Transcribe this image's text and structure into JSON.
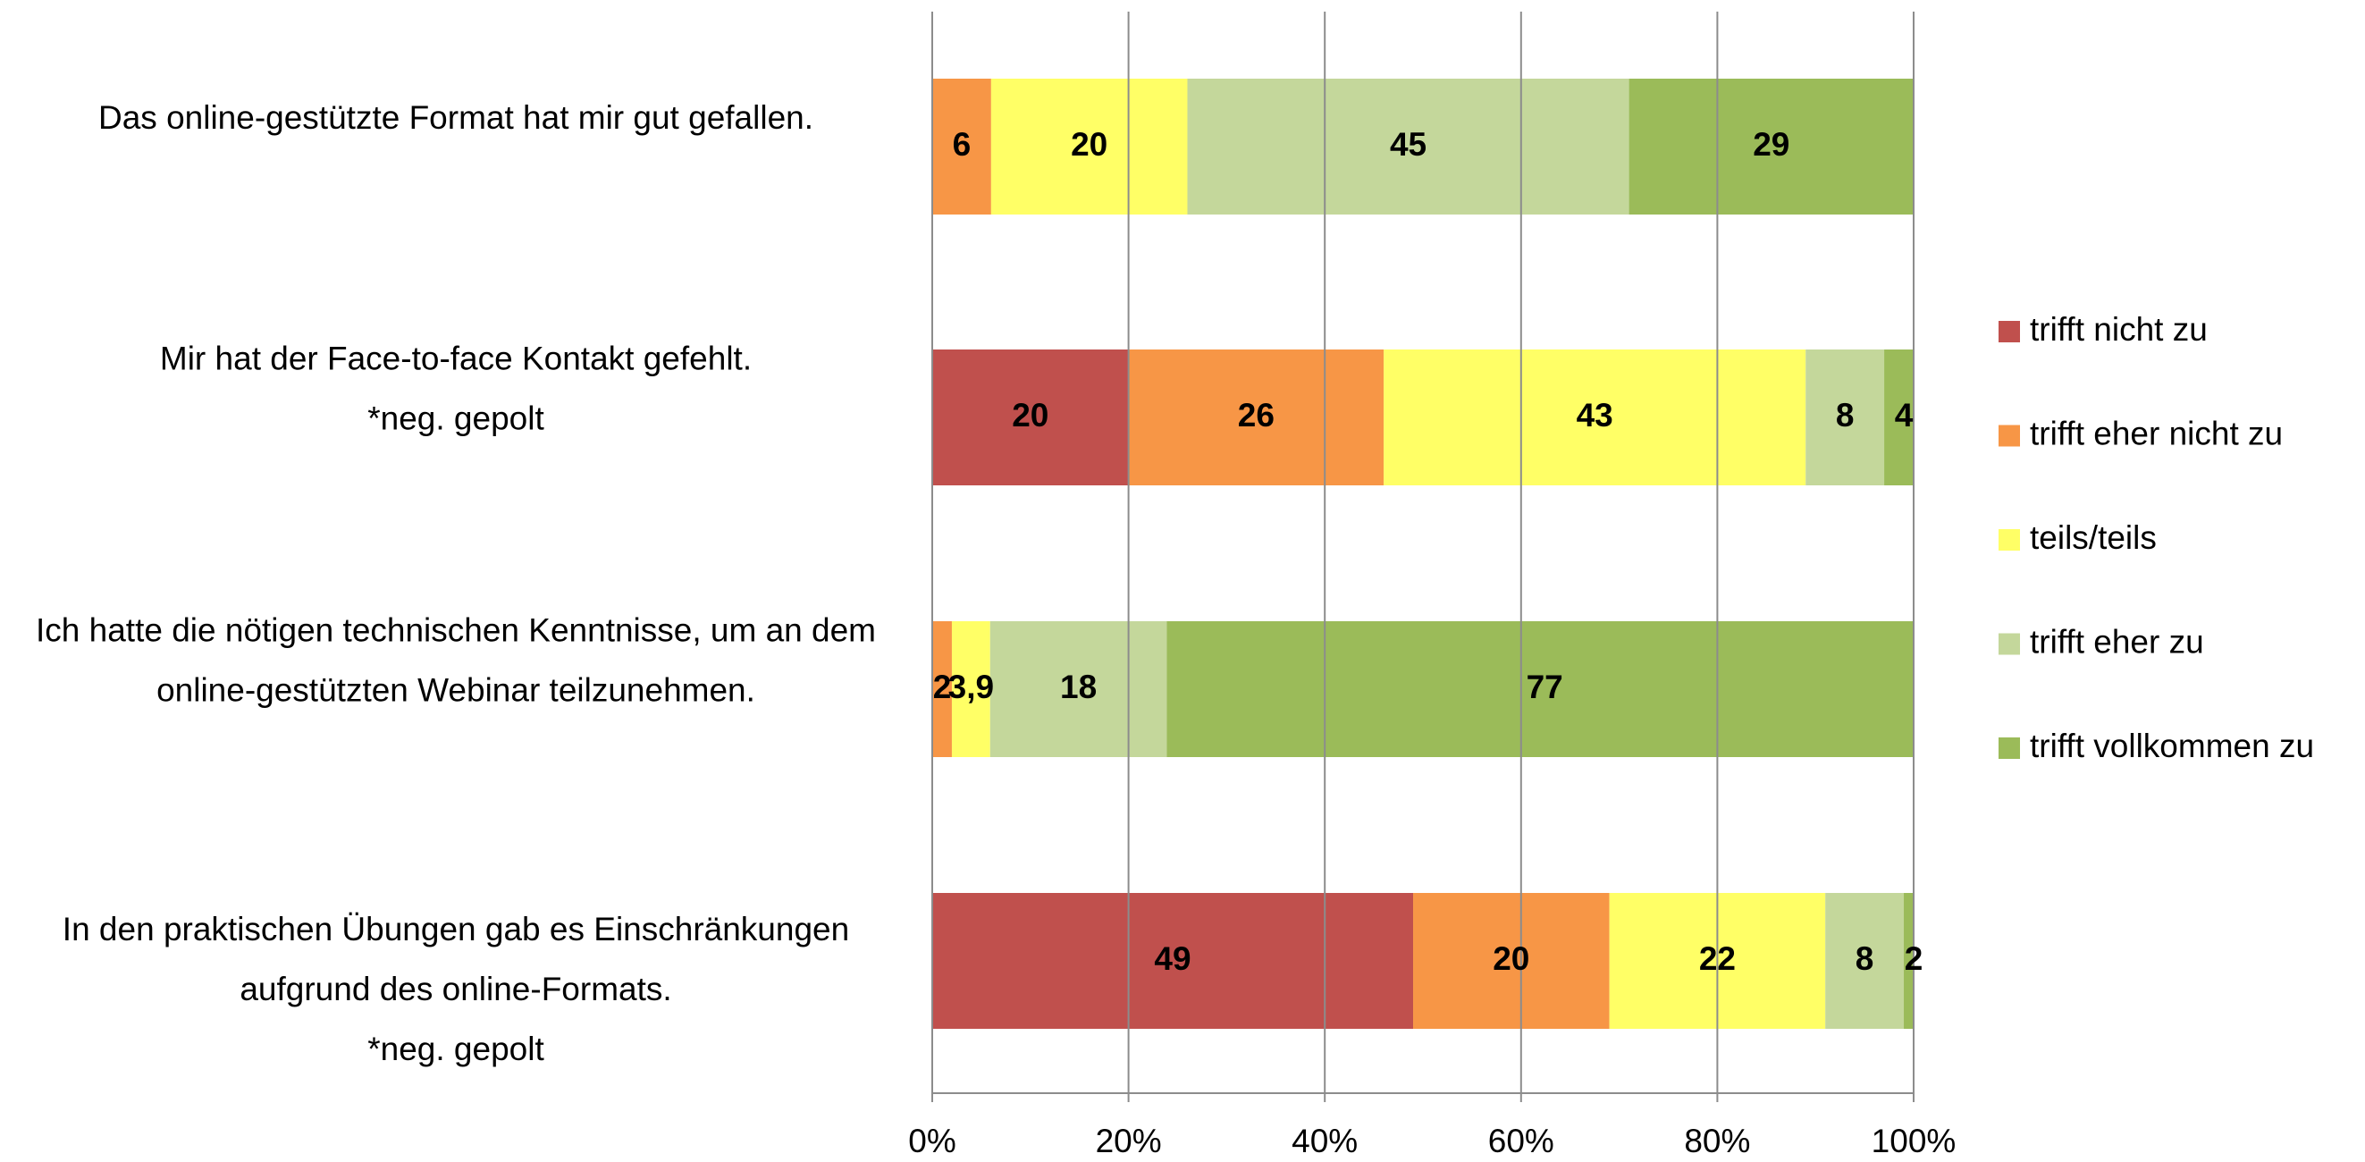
{
  "chart_data": {
    "type": "stacked_barh",
    "categories": [
      [
        "Das online-gestützte Format hat mir gut gefallen."
      ],
      [
        "Mir hat der Face-to-face Kontakt gefehlt.",
        "*neg. gepolt"
      ],
      [
        "Ich hatte die nötigen technischen Kenntnisse, um an dem",
        "online-gestützten Webinar teilzunehmen."
      ],
      [
        "In den praktischen Übungen gab es Einschränkungen",
        "aufgrund des online-Formats.",
        "*neg. gepolt"
      ]
    ],
    "series": [
      {
        "name": "trifft nicht zu",
        "color": "#c0504d",
        "values": [
          null,
          20,
          null,
          49
        ]
      },
      {
        "name": "trifft eher nicht zu",
        "color": "#f79646",
        "values": [
          6,
          26,
          2,
          20
        ]
      },
      {
        "name": "teils/teils",
        "color": "#ffff66",
        "values": [
          20,
          43,
          3.9,
          22
        ],
        "value_labels": [
          "20",
          "43",
          "3,9",
          "22"
        ]
      },
      {
        "name": "trifft eher zu",
        "color": "#c4d79b",
        "values": [
          45,
          8,
          18,
          8
        ]
      },
      {
        "name": "trifft vollkommen zu",
        "color": "#9bbb59",
        "values": [
          29,
          4,
          77,
          2
        ]
      }
    ],
    "xlim": [
      0,
      100
    ],
    "xticks": [
      {
        "value": 0,
        "label": "0%"
      },
      {
        "value": 20,
        "label": "20%"
      },
      {
        "value": 40,
        "label": "40%"
      },
      {
        "value": 60,
        "label": "60%"
      },
      {
        "value": 80,
        "label": "80%"
      },
      {
        "value": 100,
        "label": "100%"
      }
    ],
    "grid": true,
    "legend": "right"
  }
}
